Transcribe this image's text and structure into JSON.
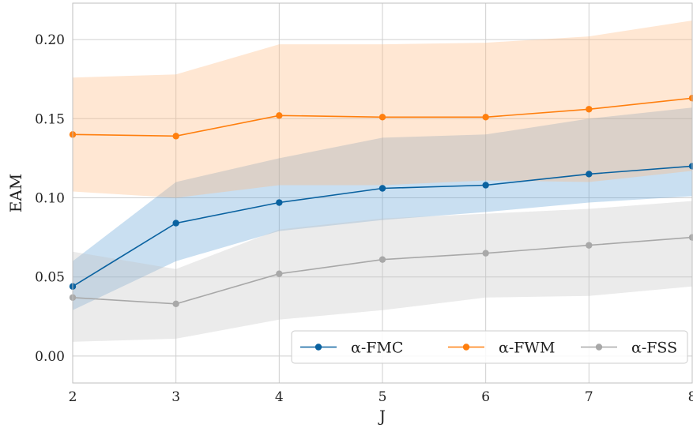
{
  "chart_data": {
    "type": "line",
    "title": "",
    "xlabel": "J",
    "ylabel": "EAM",
    "x": [
      2,
      3,
      4,
      5,
      6,
      7,
      8
    ],
    "xticks": [
      "2",
      "3",
      "4",
      "5",
      "6",
      "7",
      "8"
    ],
    "yticks": [
      "0.00",
      "0.05",
      "0.10",
      "0.15",
      "0.20"
    ],
    "xlim": [
      2,
      8
    ],
    "ylim": [
      -0.017,
      0.223
    ],
    "grid": true,
    "legend_position": "bottom-right",
    "series": [
      {
        "name": "α-FMC",
        "color": "#0a62a0",
        "band_color": "#5a9ed4",
        "values": [
          0.044,
          0.084,
          0.097,
          0.106,
          0.108,
          0.115,
          0.12
        ],
        "lower": [
          0.029,
          0.06,
          0.079,
          0.086,
          0.091,
          0.097,
          0.101
        ],
        "upper": [
          0.06,
          0.11,
          0.125,
          0.138,
          0.14,
          0.15,
          0.157
        ]
      },
      {
        "name": "α-FWM",
        "color": "#ff7f0e",
        "band_color": "#ffb77a",
        "values": [
          0.14,
          0.139,
          0.152,
          0.151,
          0.151,
          0.156,
          0.163
        ],
        "lower": [
          0.104,
          0.1,
          0.108,
          0.108,
          0.111,
          0.11,
          0.117
        ],
        "upper": [
          0.176,
          0.178,
          0.197,
          0.197,
          0.198,
          0.202,
          0.212
        ]
      },
      {
        "name": "α-FSS",
        "color": "#a8a8a8",
        "band_color": "#c2c2c2",
        "values": [
          0.037,
          0.033,
          0.052,
          0.061,
          0.065,
          0.07,
          0.075
        ],
        "lower": [
          0.009,
          0.011,
          0.023,
          0.029,
          0.037,
          0.038,
          0.044
        ],
        "upper": [
          0.066,
          0.055,
          0.08,
          0.087,
          0.09,
          0.093,
          0.098
        ]
      }
    ]
  }
}
